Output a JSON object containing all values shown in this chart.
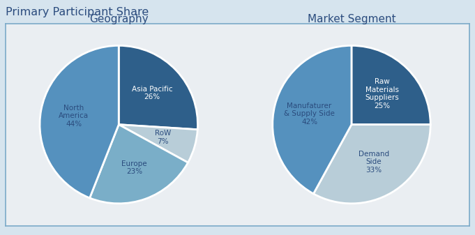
{
  "title": "Primary Participant Share",
  "title_color": "#2B4C7E",
  "title_fontsize": 11.5,
  "bg_outer": "#D6E4EE",
  "bg_panel": "#EAEEF2",
  "panel_border_color": "#7BAAC8",
  "geo_title": "Geography",
  "geo_values": [
    26,
    7,
    23,
    44
  ],
  "geo_colors": [
    "#2E5F8A",
    "#B8CDD8",
    "#7AAEC8",
    "#5591BE"
  ],
  "geo_startangle": 90,
  "geo_label_texts": [
    "Asia Pacific\n26%",
    "RoW\n7%",
    "Europe\n23%",
    "North\nAmerica\n44%"
  ],
  "geo_text_colors": [
    "white",
    "#2B4C7E",
    "#2B4C7E",
    "#2B4C7E"
  ],
  "geo_label_r": [
    0.58,
    0.58,
    0.58,
    0.58
  ],
  "market_title": "Market Segment",
  "market_values": [
    25,
    33,
    42
  ],
  "market_colors": [
    "#2E5F8A",
    "#B8CDD8",
    "#5591BE"
  ],
  "market_startangle": 90,
  "market_label_texts": [
    "Raw\nMaterials\nSuppliers\n25%",
    "Demand\nSide\n33%",
    "Manufaturer\n& Supply Side\n42%"
  ],
  "market_text_colors": [
    "white",
    "#2B4C7E",
    "#2B4C7E"
  ],
  "market_label_r": [
    0.55,
    0.55,
    0.55
  ],
  "subtitle_fontsize": 11,
  "label_fontsize": 7.5
}
